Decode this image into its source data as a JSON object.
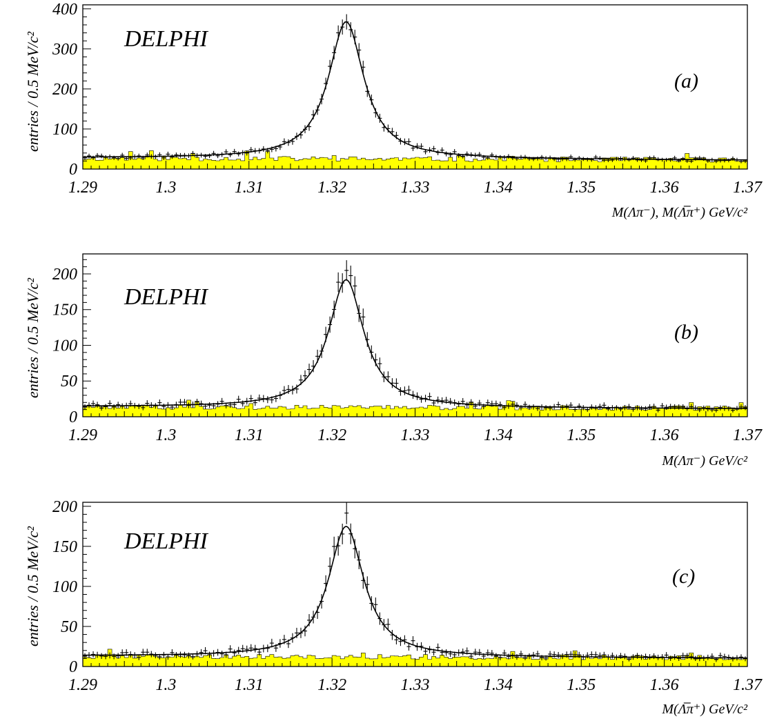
{
  "colors": {
    "background_fill": "#ffff00",
    "axis": "#000000"
  },
  "x_ticks": [
    "1.29",
    "1.3",
    "1.31",
    "1.32",
    "1.33",
    "1.34",
    "1.35",
    "1.36",
    "1.37"
  ],
  "chart_data": [
    {
      "type": "histogram",
      "panel_label": "(a)",
      "brand": "DELPHI",
      "ylabel": "entries / 0.5 MeV/c²",
      "xlabel": "M(Λπ⁻), M(Λ̅π⁺) GeV/c²",
      "xlim": [
        1.29,
        1.37
      ],
      "ylim": [
        0,
        410
      ],
      "y_ticks": [
        "0",
        "100",
        "200",
        "300",
        "400"
      ],
      "bin_width_MeV": 0.5,
      "series": [
        {
          "kind": "data_points_with_errors",
          "peak_value": 380
        },
        {
          "kind": "fit_curve",
          "peak_mass": 1.3217,
          "peak_value": 370,
          "background_level": 28
        },
        {
          "kind": "background_histogram",
          "fill": "yellow",
          "level": 27
        }
      ]
    },
    {
      "type": "histogram",
      "panel_label": "(b)",
      "brand": "DELPHI",
      "ylabel": "entries / 0.5 MeV/c²",
      "xlabel": "M(Λπ⁻) GeV/c²",
      "xlim": [
        1.29,
        1.37
      ],
      "ylim": [
        0,
        228
      ],
      "y_ticks": [
        "0",
        "50",
        "100",
        "150",
        "200"
      ],
      "bin_width_MeV": 0.5,
      "series": [
        {
          "kind": "data_points_with_errors",
          "peak_value": 205
        },
        {
          "kind": "fit_curve",
          "peak_mass": 1.3217,
          "peak_value": 193,
          "background_level": 14
        },
        {
          "kind": "background_histogram",
          "fill": "yellow",
          "level": 14
        }
      ]
    },
    {
      "type": "histogram",
      "panel_label": "(c)",
      "brand": "DELPHI",
      "ylabel": "entries / 0.5 MeV/c²",
      "xlabel": "M(Λ̅π⁺) GeV/c²",
      "xlim": [
        1.29,
        1.37
      ],
      "ylim": [
        0,
        205
      ],
      "y_ticks": [
        "0",
        "50",
        "100",
        "150",
        "200"
      ],
      "bin_width_MeV": 0.5,
      "series": [
        {
          "kind": "data_points_with_errors",
          "peak_value": 183
        },
        {
          "kind": "fit_curve",
          "peak_mass": 1.3217,
          "peak_value": 176,
          "background_level": 13
        },
        {
          "kind": "background_histogram",
          "fill": "yellow",
          "level": 13
        }
      ]
    }
  ]
}
